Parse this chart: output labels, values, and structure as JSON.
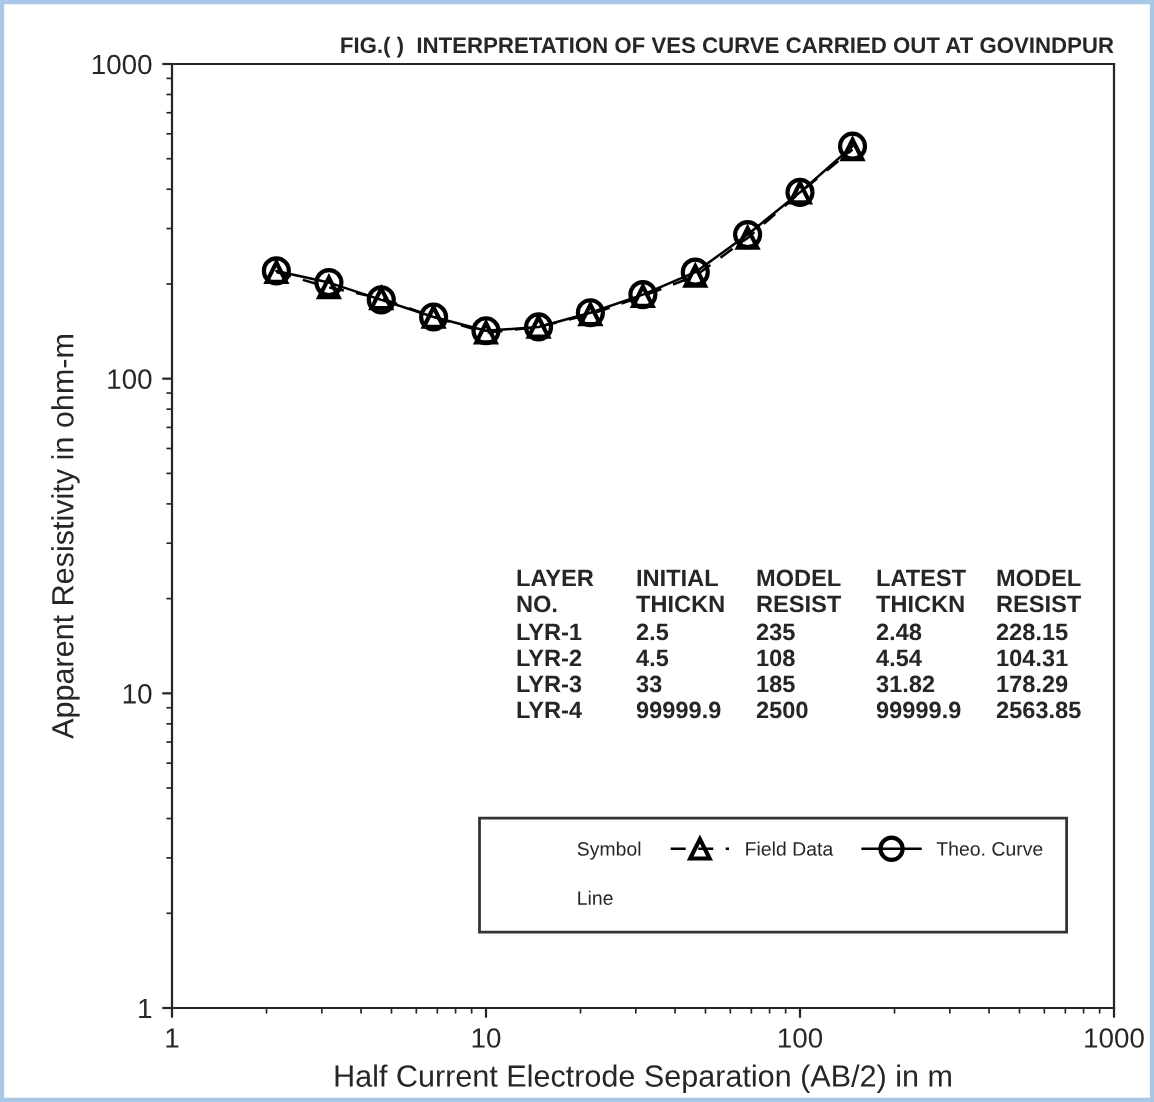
{
  "chart_data": {
    "type": "line",
    "title": "FIG.( )  INTERPRETATION OF VES CURVE CARRIED OUT AT GOVINDPUR",
    "xlabel": "Half Current Electrode Separation (AB/2) in m",
    "ylabel": "Apparent Resistivity in ohm-m",
    "x": [
      2.15,
      3.16,
      4.64,
      6.81,
      10,
      14.7,
      21.5,
      31.6,
      46.4,
      68.1,
      100,
      147
    ],
    "series": [
      {
        "name": "Field Data",
        "color": "#000000",
        "marker": "triangle",
        "line_style": "dashed",
        "values": [
          218,
          195,
          180,
          157,
          140,
          146,
          160,
          183,
          212,
          280,
          390,
          535
        ]
      },
      {
        "name": "Theo. Curve",
        "color": "#000000",
        "marker": "circle",
        "line_style": "solid",
        "values": [
          220,
          202,
          178,
          157,
          142,
          146,
          162,
          185,
          218,
          287,
          391,
          548
        ]
      }
    ],
    "log": "xy",
    "xlim": [
      1,
      1000
    ],
    "ylim": [
      1,
      1000
    ],
    "xticks": [
      1,
      10,
      100,
      1000
    ],
    "yticks": [
      1,
      10,
      100,
      1000
    ],
    "grid": false,
    "legend": "bottom right",
    "annotations": [
      "LAYER",
      "INITIAL",
      "MODEL",
      "LATEST",
      "MODEL",
      "NO.",
      "THICKN",
      "RESIST",
      "THICKN",
      "RESIST",
      "LYR-1",
      "2.5",
      "235",
      "2.48",
      "228.15",
      "LYR-2",
      "4.5",
      "108",
      "4.54",
      "104.31",
      "LYR-3",
      "33",
      "185",
      "31.82",
      "178.29",
      "LYR-4",
      "99999.9",
      "2500",
      "99999.9",
      "2563.85",
      "Symbol",
      "Line"
    ]
  }
}
